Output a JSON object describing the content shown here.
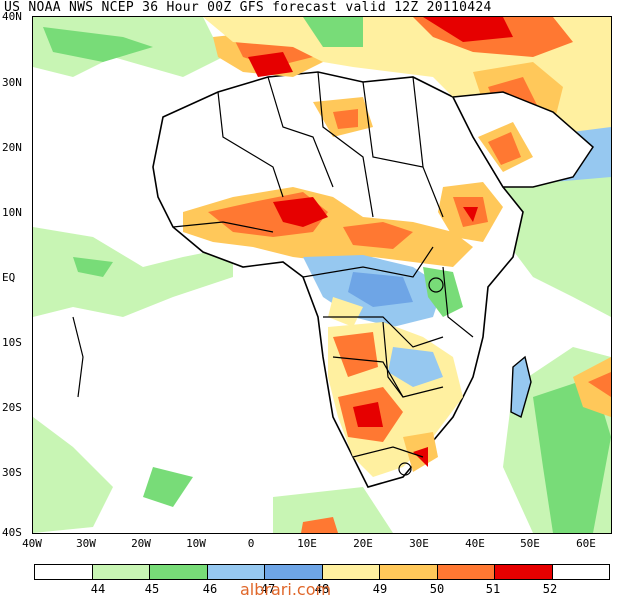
{
  "title": "US NOAA NWS NCEP 36 Hour 00Z GFS forecast valid 12Z 20110424",
  "lat_labels": [
    "40N",
    "30N",
    "20N",
    "10N",
    "EQ",
    "10S",
    "20S",
    "30S",
    "40S"
  ],
  "lon_labels": [
    "40W",
    "30W",
    "20W",
    "10W",
    "0",
    "10E",
    "20E",
    "30E",
    "40E",
    "50E",
    "60E"
  ],
  "colorbar": {
    "labels": [
      "44",
      "45",
      "46",
      "47",
      "48",
      "49",
      "50",
      "51",
      "52"
    ],
    "colors": [
      "#ffffff",
      "#c8f5b4",
      "#78dc78",
      "#96c8f0",
      "#6ea5e6",
      "#fff0a0",
      "#ffc85a",
      "#ff7832",
      "#e60000"
    ]
  },
  "watermark": "albrari.com"
}
